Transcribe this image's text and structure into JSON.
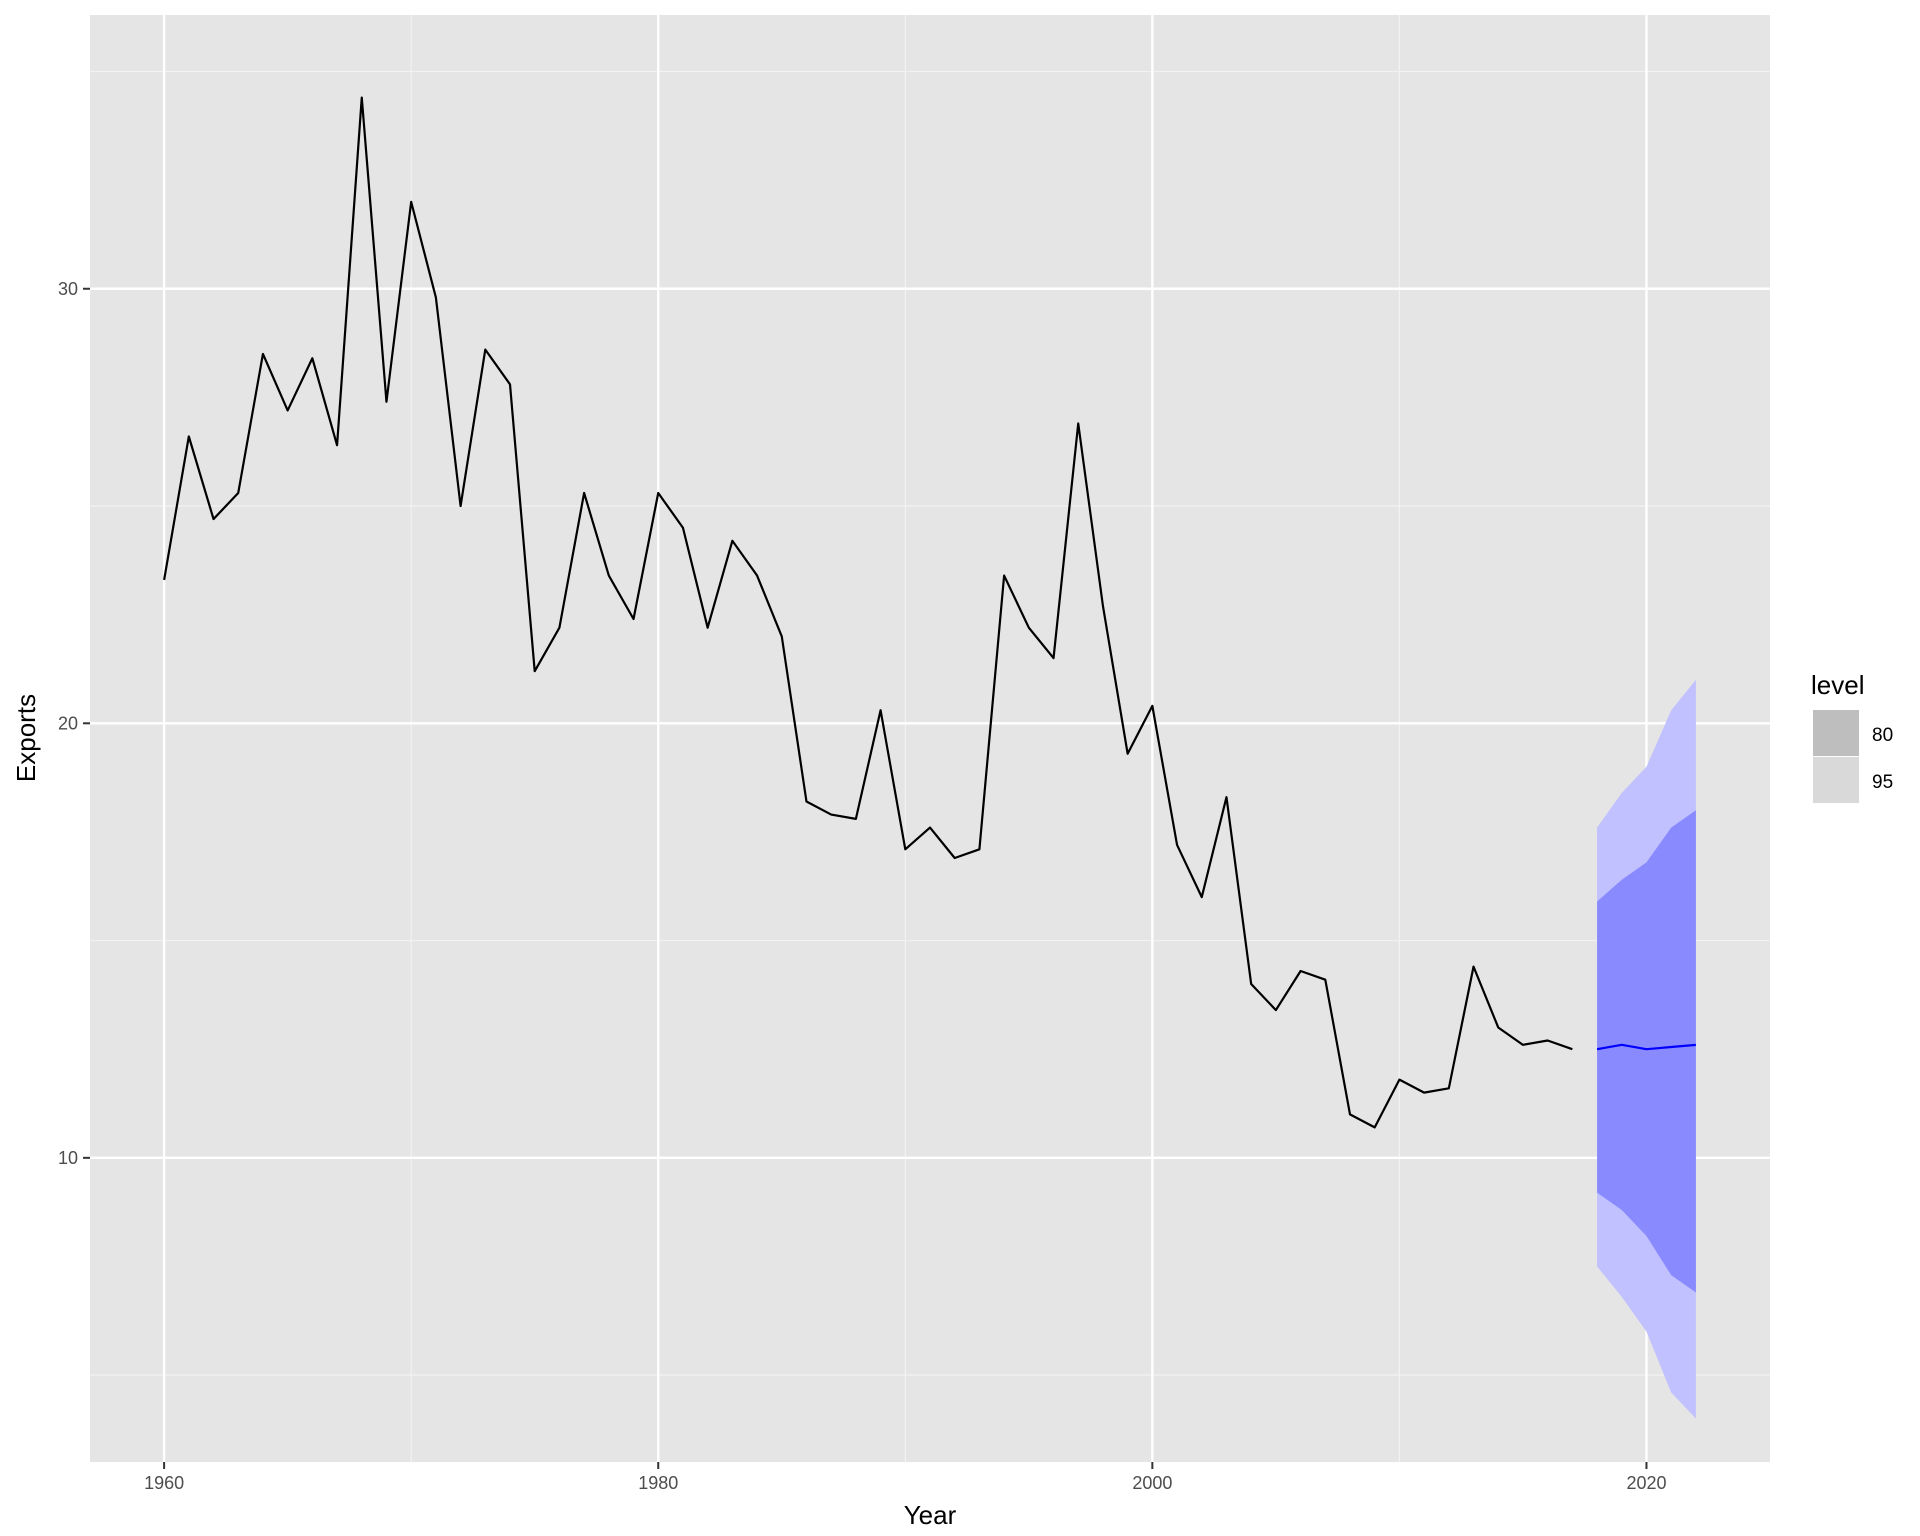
{
  "chart_data": {
    "type": "line",
    "xlabel": "Year",
    "ylabel": "Exports",
    "xlim": [
      1957,
      2025
    ],
    "ylim": [
      3.0,
      36.3
    ],
    "x_ticks": [
      {
        "value": 1960,
        "label": "1960"
      },
      {
        "value": 1980,
        "label": "1980"
      },
      {
        "value": 2000,
        "label": "2000"
      },
      {
        "value": 2020,
        "label": "2020"
      }
    ],
    "y_ticks": [
      {
        "value": 10,
        "label": "10"
      },
      {
        "value": 20,
        "label": "20"
      },
      {
        "value": 30,
        "label": "30"
      }
    ],
    "grid": true,
    "background": "#e5e5e5",
    "observed": {
      "x": [
        1960,
        1961,
        1962,
        1963,
        1964,
        1965,
        1966,
        1967,
        1968,
        1969,
        1970,
        1971,
        1972,
        1973,
        1974,
        1975,
        1976,
        1977,
        1978,
        1979,
        1980,
        1981,
        1982,
        1983,
        1984,
        1985,
        1986,
        1987,
        1988,
        1989,
        1990,
        1991,
        1992,
        1993,
        1994,
        1995,
        1996,
        1997,
        1998,
        1999,
        2000,
        2001,
        2002,
        2003,
        2004,
        2005,
        2006,
        2007,
        2008,
        2009,
        2010,
        2011,
        2012,
        2013,
        2014,
        2015,
        2016,
        2017
      ],
      "y": [
        23.3,
        26.6,
        24.7,
        25.3,
        28.5,
        27.2,
        28.4,
        26.4,
        34.4,
        27.4,
        32.0,
        29.8,
        25.0,
        28.6,
        27.8,
        21.2,
        22.2,
        25.3,
        23.4,
        22.4,
        25.3,
        24.5,
        22.2,
        24.2,
        23.4,
        22.0,
        18.2,
        17.9,
        17.8,
        20.3,
        17.1,
        17.6,
        16.9,
        17.1,
        23.4,
        22.2,
        21.5,
        26.9,
        22.7,
        19.3,
        20.4,
        17.2,
        16.0,
        18.3,
        14.0,
        13.4,
        14.3,
        14.1,
        11.0,
        10.7,
        11.8,
        11.5,
        11.6,
        14.4,
        13.0,
        12.6,
        12.7,
        12.5
      ]
    },
    "forecast": {
      "x": [
        2018,
        2019,
        2020,
        2021,
        2022
      ],
      "mean": [
        12.5,
        12.6,
        12.5,
        12.55,
        12.6
      ],
      "lo80": [
        9.2,
        8.8,
        8.2,
        7.3,
        6.9
      ],
      "hi80": [
        15.9,
        16.4,
        16.8,
        17.6,
        18.0
      ],
      "lo95": [
        7.5,
        6.8,
        6.0,
        4.6,
        4.0
      ],
      "hi95": [
        17.6,
        18.4,
        19.0,
        20.3,
        21.0
      ]
    },
    "legend": {
      "title": "level",
      "position": "right",
      "entries": [
        {
          "label": "80",
          "color": "#bebebe"
        },
        {
          "label": "95",
          "color": "#d9d9d9"
        }
      ]
    },
    "colors": {
      "line": "#000000",
      "forecast_line": "#0000ff",
      "band80": "#8a8aff",
      "band95": "#c1c1ff"
    }
  }
}
